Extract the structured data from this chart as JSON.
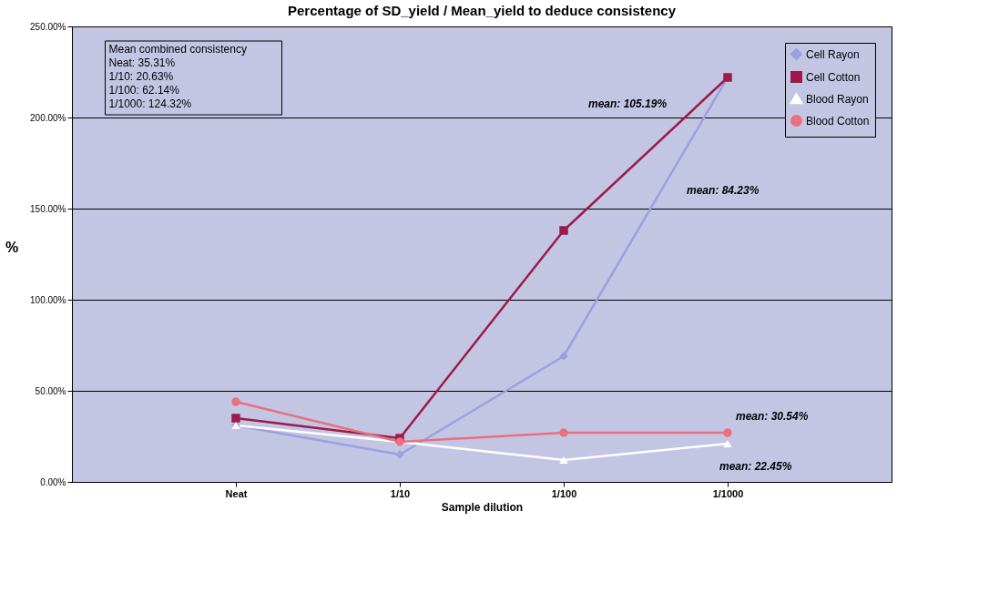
{
  "chart_data": {
    "type": "line",
    "title": "Percentage of SD_yield / Mean_yield to deduce consistency",
    "xlabel": "Sample dilution",
    "ylabel": "%",
    "categories": [
      "Neat",
      "1/10",
      "1/100",
      "1/1000"
    ],
    "series": [
      {
        "name": "Cell Rayon",
        "color": "#9aa0e0",
        "marker": "diamond",
        "values": [
          31,
          15,
          69,
          222
        ]
      },
      {
        "name": "Cell Cotton",
        "color": "#9b1b4b",
        "marker": "square",
        "values": [
          35,
          24,
          138,
          222
        ]
      },
      {
        "name": "Blood Rayon",
        "color": "#ffffff",
        "marker": "triangle",
        "values": [
          31,
          22,
          12,
          21
        ]
      },
      {
        "name": "Blood Cotton",
        "color": "#e8707f",
        "marker": "circle",
        "values": [
          44,
          22,
          27,
          27
        ]
      }
    ],
    "ylim": [
      0,
      250
    ],
    "yticks": [
      {
        "value": 0,
        "label": "0.00%"
      },
      {
        "value": 50,
        "label": "50.00%"
      },
      {
        "value": 100,
        "label": "100.00%"
      },
      {
        "value": 150,
        "label": "150.00%"
      },
      {
        "value": 200,
        "label": "200.00%"
      },
      {
        "value": 250,
        "label": "250.00%"
      }
    ],
    "grid": "y",
    "legend": "top right",
    "line_style": "solid",
    "annotations": [
      "Mean combined consistency\nNeat: 35.31%\n1/10: 20.63%\n1/100: 62.14%\n1/1000: 124.32%",
      "mean: 105.19%",
      "mean: 84.23%",
      "mean: 30.54%",
      "mean: 22.45%"
    ]
  }
}
